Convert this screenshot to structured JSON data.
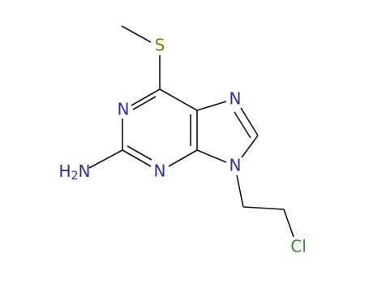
{
  "atoms": [
    {
      "label": "S"
    },
    {
      "label": "N"
    },
    {
      "label": "N"
    },
    {
      "label": "N"
    },
    {
      "label": "N"
    },
    {
      "label": "H2N"
    },
    {
      "label": "Cl"
    }
  ]
}
